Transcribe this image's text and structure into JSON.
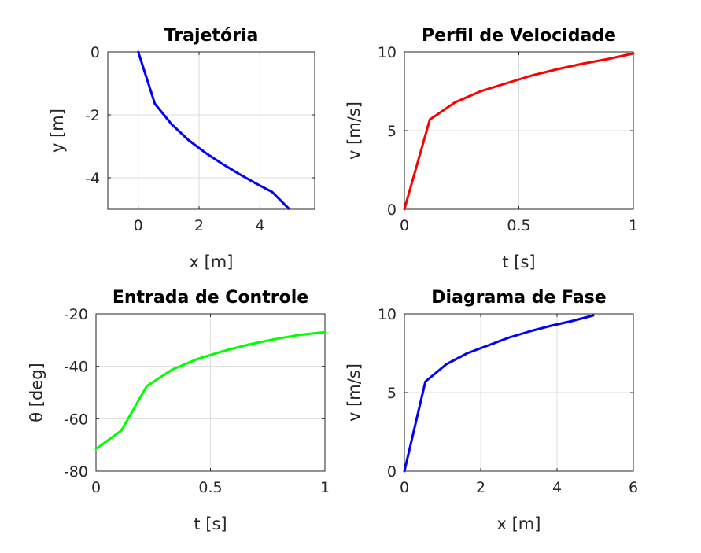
{
  "chart_data": [
    {
      "type": "line",
      "title": "Trajetória",
      "xlabel": "x [m]",
      "ylabel": "y [m]",
      "xlim": [
        -1,
        5.8
      ],
      "ylim": [
        -5,
        0
      ],
      "xticks": [
        0,
        2,
        4
      ],
      "yticks": [
        -4,
        -2,
        0
      ],
      "xtick_labels": [
        "0",
        "2",
        "4"
      ],
      "ytick_labels": [
        "-4",
        "-2",
        "0"
      ],
      "grid": true,
      "color": "#0000ff",
      "x": [
        0,
        0.55,
        1.1,
        1.65,
        2.2,
        2.75,
        3.3,
        3.85,
        4.4,
        4.95
      ],
      "y": [
        0,
        -1.65,
        -2.3,
        -2.8,
        -3.2,
        -3.55,
        -3.87,
        -4.17,
        -4.45,
        -4.98
      ]
    },
    {
      "type": "line",
      "title": "Perfil de Velocidade",
      "xlabel": "t [s]",
      "ylabel": "v [m/s]",
      "xlim": [
        0,
        1
      ],
      "ylim": [
        0,
        10
      ],
      "xticks": [
        0,
        0.5,
        1
      ],
      "yticks": [
        0,
        5,
        10
      ],
      "xtick_labels": [
        "0",
        "0.5",
        "1"
      ],
      "ytick_labels": [
        "0",
        "5",
        "10"
      ],
      "grid": true,
      "color": "#ff0000",
      "x": [
        0,
        0.111,
        0.222,
        0.333,
        0.444,
        0.556,
        0.667,
        0.778,
        0.889,
        1.0
      ],
      "y": [
        0,
        5.7,
        6.8,
        7.5,
        8.0,
        8.5,
        8.9,
        9.25,
        9.55,
        9.9
      ]
    },
    {
      "type": "line",
      "title": "Entrada de Controle",
      "xlabel": "t [s]",
      "ylabel": "θ [deg]",
      "xlim": [
        0,
        1
      ],
      "ylim": [
        -80,
        -20
      ],
      "xticks": [
        0,
        0.5,
        1
      ],
      "yticks": [
        -80,
        -60,
        -40,
        -20
      ],
      "xtick_labels": [
        "0",
        "0.5",
        "1"
      ],
      "ytick_labels": [
        "-80",
        "-60",
        "-40",
        "-20"
      ],
      "grid": true,
      "color": "#00ff00",
      "x": [
        0,
        0.111,
        0.222,
        0.333,
        0.444,
        0.556,
        0.667,
        0.778,
        0.889,
        1.0
      ],
      "y": [
        -71.5,
        -64.5,
        -47.5,
        -41.2,
        -37.2,
        -34.2,
        -31.7,
        -29.7,
        -28.0,
        -27.0
      ]
    },
    {
      "type": "line",
      "title": "Diagrama de Fase",
      "xlabel": "x [m]",
      "ylabel": "v [m/s]",
      "xlim": [
        0,
        6
      ],
      "ylim": [
        0,
        10
      ],
      "xticks": [
        0,
        2,
        4,
        6
      ],
      "yticks": [
        0,
        5,
        10
      ],
      "xtick_labels": [
        "0",
        "2",
        "4",
        "6"
      ],
      "ytick_labels": [
        "0",
        "5",
        "10"
      ],
      "grid": true,
      "color": "#0000ff",
      "x": [
        0,
        0.55,
        1.1,
        1.65,
        2.2,
        2.75,
        3.3,
        3.85,
        4.4,
        4.95
      ],
      "y": [
        0,
        5.7,
        6.8,
        7.5,
        8.0,
        8.5,
        8.9,
        9.25,
        9.55,
        9.9
      ]
    }
  ]
}
